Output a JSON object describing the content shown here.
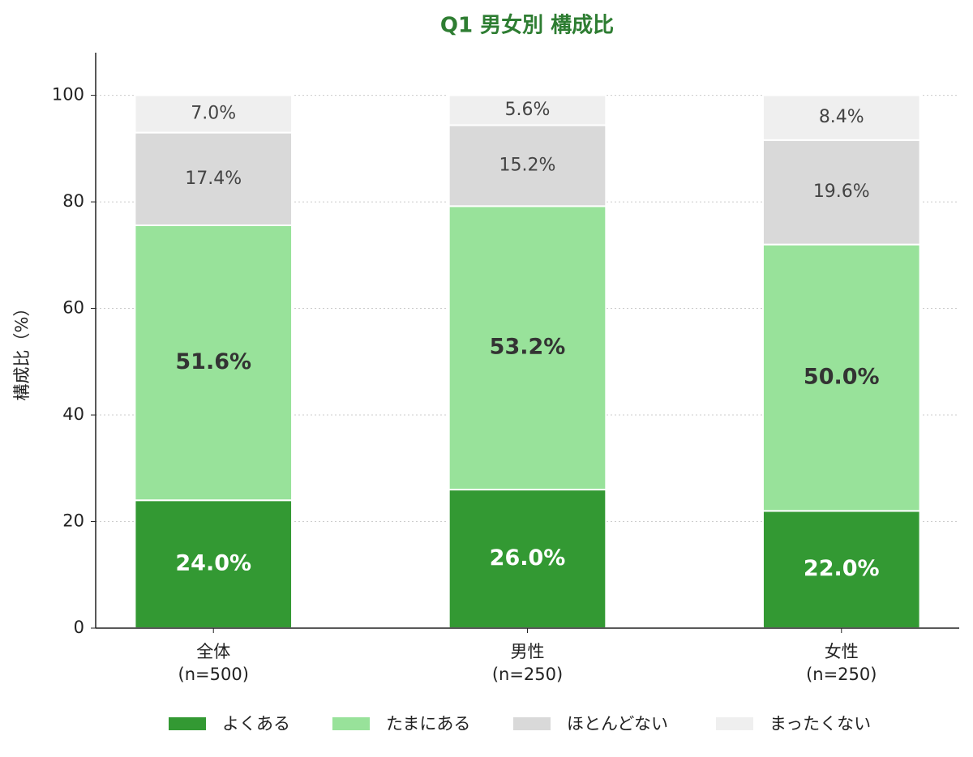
{
  "chart_data": {
    "type": "stacked_bar",
    "title": "Q1 男女別 構成比",
    "y_label": "構成比（%）",
    "categories": [
      [
        "全体",
        "(n=500)"
      ],
      [
        "男性",
        "(n=250)"
      ],
      [
        "女性",
        "(n=250)"
      ]
    ],
    "series": [
      {
        "name": "よくある",
        "color": "#339933",
        "values": [
          24.0,
          26.0,
          22.0
        ],
        "value_labels": [
          "24.0%",
          "26.0%",
          "22.0%"
        ]
      },
      {
        "name": "たまにある",
        "color": "#98e29a",
        "values": [
          51.6,
          53.2,
          50.0
        ],
        "value_labels": [
          "51.6%",
          "53.2%",
          "50.0%"
        ]
      },
      {
        "name": "ほとんどない",
        "color": "#d9d9d9",
        "values": [
          17.4,
          15.2,
          19.6
        ],
        "value_labels": [
          "17.4%",
          "15.2%",
          "19.6%"
        ]
      },
      {
        "name": "まったくない",
        "color": "#efefef",
        "values": [
          7.0,
          5.6,
          8.4
        ],
        "value_labels": [
          "7.0%",
          "5.6%",
          "8.4%"
        ]
      }
    ],
    "ylim": [
      0,
      108
    ],
    "yticks": [
      0,
      20,
      40,
      60,
      80,
      100
    ],
    "grid": true,
    "legend": "bottom"
  }
}
